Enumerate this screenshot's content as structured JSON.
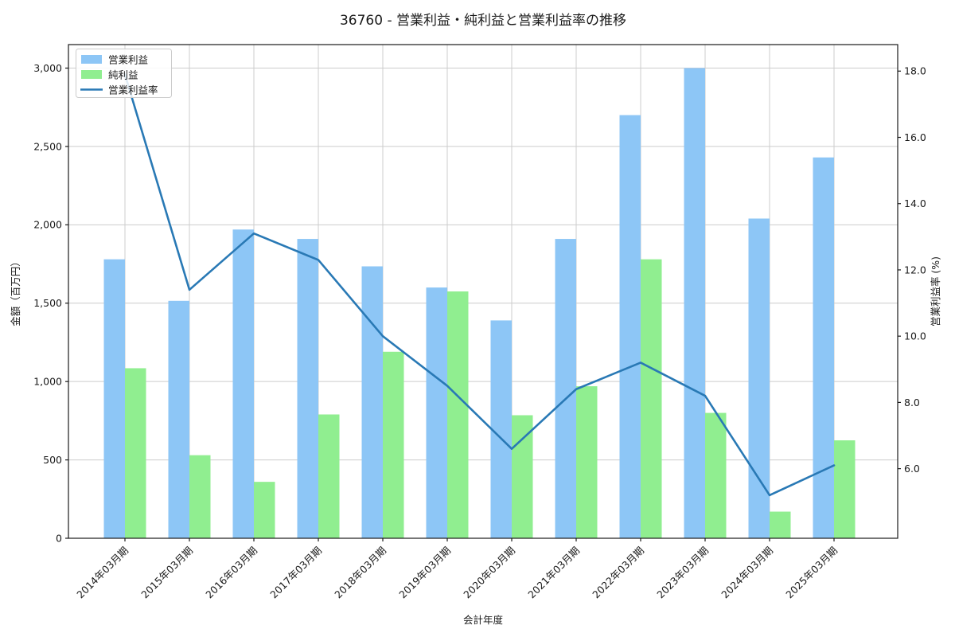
{
  "chart_data": {
    "type": "bar",
    "title": "36760 - 営業利益・純利益と営業利益率の推移",
    "xlabel": "会計年度",
    "ylabel_left": "金額（百万円）",
    "ylabel_right": "営業利益率 (%)",
    "categories": [
      "2014年03月期",
      "2015年03月期",
      "2016年03月期",
      "2017年03月期",
      "2018年03月期",
      "2019年03月期",
      "2020年03月期",
      "2021年03月期",
      "2022年03月期",
      "2023年03月期",
      "2024年03月期",
      "2025年03月期"
    ],
    "series": [
      {
        "name": "営業利益",
        "type": "bar",
        "axis": "left",
        "color": "#8dc6f6",
        "values": [
          1780,
          1515,
          1970,
          1910,
          1735,
          1600,
          1390,
          1910,
          2700,
          3000,
          2040,
          2430
        ]
      },
      {
        "name": "純利益",
        "type": "bar",
        "axis": "left",
        "color": "#90ee90",
        "values": [
          1085,
          530,
          360,
          790,
          1190,
          1575,
          785,
          970,
          1780,
          800,
          170,
          625
        ]
      },
      {
        "name": "営業利益率",
        "type": "line",
        "axis": "right",
        "color": "#2979b5",
        "values": [
          17.9,
          11.4,
          13.1,
          12.3,
          10.0,
          8.5,
          6.6,
          8.4,
          9.2,
          8.2,
          5.2,
          6.1
        ]
      }
    ],
    "ylim_left": [
      0,
      3150
    ],
    "ylim_right": [
      3.9,
      18.8
    ],
    "yticks_left": {
      "values": [
        0,
        500,
        1000,
        1500,
        2000,
        2500,
        3000
      ],
      "labels": [
        "0",
        "500",
        "1,000",
        "1,500",
        "2,000",
        "2,500",
        "3,000"
      ]
    },
    "yticks_right": {
      "values": [
        6,
        8,
        10,
        12,
        14,
        16,
        18
      ],
      "labels": [
        "6.0",
        "8.0",
        "10.0",
        "12.0",
        "14.0",
        "16.0",
        "18.0"
      ]
    },
    "grid": true,
    "legend": {
      "position": "upper-left",
      "items": [
        "営業利益",
        "純利益",
        "営業利益率"
      ]
    },
    "colors": {
      "grid": "#cccccc",
      "spine": "#1a1a1a",
      "legend_border": "#cccccc",
      "legend_bg": "#ffffff"
    }
  }
}
